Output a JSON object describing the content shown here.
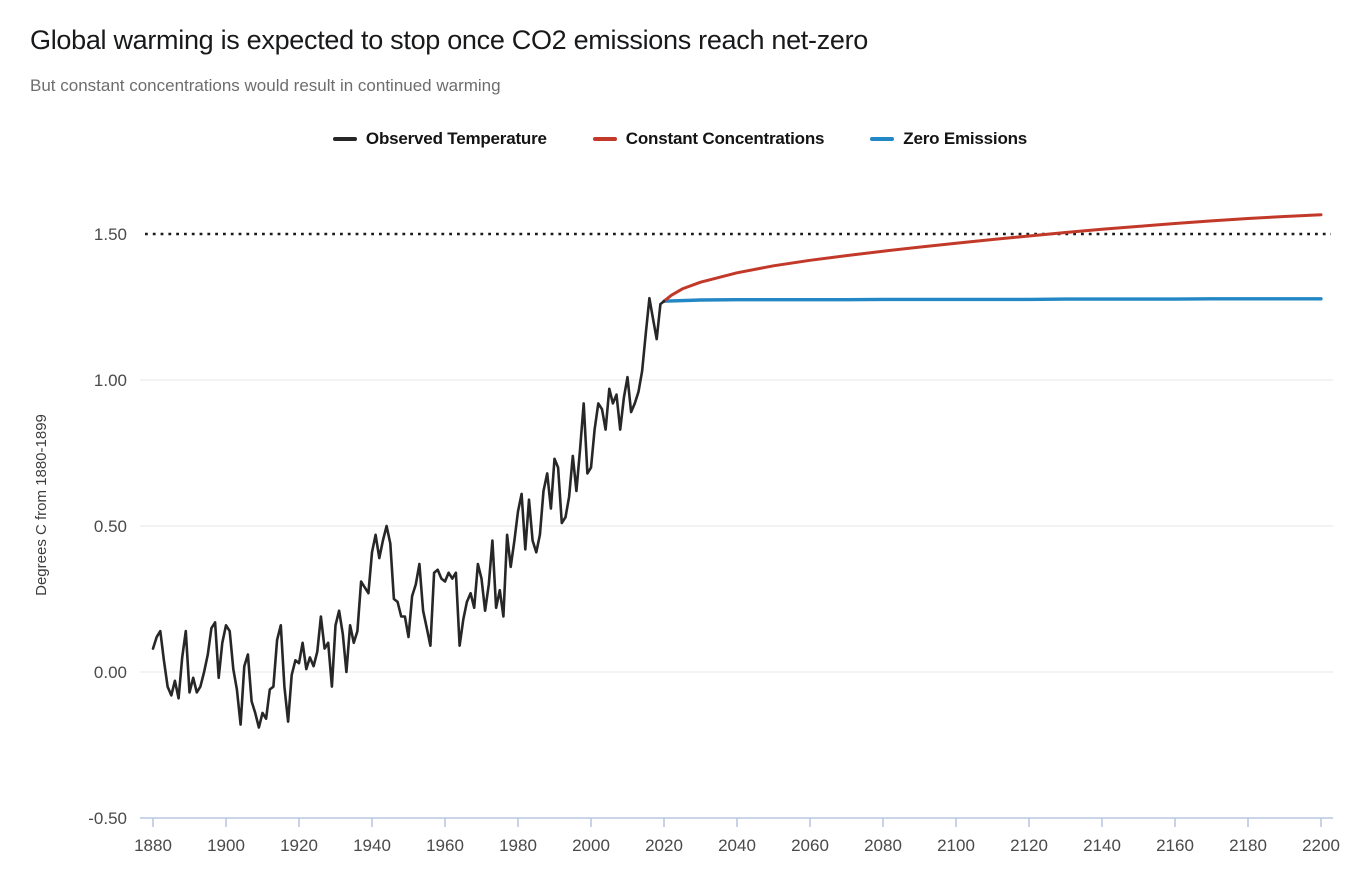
{
  "header": {
    "title": "Global warming is expected to stop once CO2 emissions reach net-zero",
    "subtitle": "But constant concentrations would result in continued warming"
  },
  "legend": [
    {
      "label": "Observed Temperature",
      "color": "#272727"
    },
    {
      "label": "Constant Concentrations",
      "color": "#c2392a"
    },
    {
      "label": "Zero Emissions",
      "color": "#2287c4"
    }
  ],
  "colors": {
    "observed": "#272727",
    "constant_concentrations": "#c2392a",
    "zero_emissions": "#2287c4",
    "gridline": "#e7e7e7",
    "axis_line": "#bac7e2",
    "reference_line": "#1a1a1a",
    "tick_text": "#4a4a4a"
  },
  "chart_data": {
    "type": "line",
    "title": "Global warming is expected to stop once CO2 emissions reach net-zero",
    "subtitle": "But constant concentrations would result in continued warming",
    "xlabel": "",
    "ylabel": "Degrees C from 1880-1899",
    "xlim": [
      1880,
      2200
    ],
    "ylim": [
      -0.5,
      1.75
    ],
    "grid": "horizontal",
    "legend_position": "top-center",
    "x_axis": {
      "ticks": [
        1880,
        1900,
        1920,
        1940,
        1960,
        1980,
        2000,
        2020,
        2040,
        2060,
        2080,
        2100,
        2120,
        2140,
        2160,
        2180,
        2200
      ]
    },
    "y_axis": {
      "title": "Degrees C from 1880-1899",
      "ticks": [
        {
          "value": 1.5,
          "label": "1.50"
        },
        {
          "value": 1.0,
          "label": "1.00"
        },
        {
          "value": 0.5,
          "label": "0.50"
        },
        {
          "value": 0.0,
          "label": "0.00"
        },
        {
          "value": -0.5,
          "label": "-0.50"
        }
      ],
      "gridline_values": [
        0.0,
        0.5,
        1.0
      ],
      "baseline_value": -0.5
    },
    "reference_line": {
      "value": 1.5,
      "style": "dotted",
      "color": "#1a1a1a"
    },
    "series": [
      {
        "name": "Observed Temperature",
        "color": "#272727",
        "stroke_width": 2.6,
        "x_start": 1880,
        "x_step": 1,
        "values": [
          0.08,
          0.12,
          0.14,
          0.04,
          -0.05,
          -0.08,
          -0.03,
          -0.09,
          0.05,
          0.14,
          -0.07,
          -0.02,
          -0.07,
          -0.05,
          0.0,
          0.06,
          0.15,
          0.17,
          -0.02,
          0.1,
          0.16,
          0.14,
          0.01,
          -0.06,
          -0.18,
          0.02,
          0.06,
          -0.1,
          -0.14,
          -0.19,
          -0.14,
          -0.16,
          -0.06,
          -0.05,
          0.11,
          0.16,
          -0.05,
          -0.17,
          -0.01,
          0.04,
          0.03,
          0.1,
          0.01,
          0.05,
          0.02,
          0.07,
          0.19,
          0.08,
          0.1,
          -0.05,
          0.16,
          0.21,
          0.13,
          0.0,
          0.16,
          0.1,
          0.14,
          0.31,
          0.29,
          0.27,
          0.41,
          0.47,
          0.39,
          0.45,
          0.5,
          0.44,
          0.25,
          0.24,
          0.19,
          0.19,
          0.12,
          0.26,
          0.3,
          0.37,
          0.21,
          0.15,
          0.09,
          0.34,
          0.35,
          0.32,
          0.31,
          0.34,
          0.32,
          0.34,
          0.09,
          0.18,
          0.24,
          0.27,
          0.22,
          0.37,
          0.32,
          0.21,
          0.3,
          0.45,
          0.22,
          0.28,
          0.19,
          0.47,
          0.36,
          0.45,
          0.55,
          0.61,
          0.42,
          0.59,
          0.45,
          0.41,
          0.47,
          0.62,
          0.68,
          0.56,
          0.73,
          0.7,
          0.51,
          0.53,
          0.6,
          0.74,
          0.62,
          0.76,
          0.92,
          0.68,
          0.7,
          0.83,
          0.92,
          0.9,
          0.83,
          0.97,
          0.92,
          0.95,
          0.83,
          0.94,
          1.01,
          0.89,
          0.92,
          0.96,
          1.03,
          1.16,
          1.28,
          1.21,
          1.14,
          1.26,
          1.27
        ]
      },
      {
        "name": "Constant Concentrations",
        "color": "#c2392a",
        "stroke_width": 3,
        "x": [
          2020,
          2022,
          2025,
          2030,
          2040,
          2050,
          2060,
          2070,
          2080,
          2090,
          2100,
          2110,
          2120,
          2130,
          2140,
          2150,
          2160,
          2170,
          2180,
          2190,
          2200
        ],
        "values": [
          1.27,
          1.29,
          1.312,
          1.335,
          1.367,
          1.391,
          1.41,
          1.426,
          1.441,
          1.455,
          1.468,
          1.481,
          1.493,
          1.505,
          1.516,
          1.526,
          1.536,
          1.545,
          1.553,
          1.56,
          1.566
        ]
      },
      {
        "name": "Zero Emissions",
        "color": "#2287c4",
        "stroke_width": 3.4,
        "x": [
          2020,
          2030,
          2040,
          2050,
          2060,
          2070,
          2080,
          2090,
          2100,
          2110,
          2120,
          2130,
          2140,
          2150,
          2160,
          2170,
          2180,
          2190,
          2200
        ],
        "values": [
          1.27,
          1.274,
          1.275,
          1.275,
          1.275,
          1.275,
          1.276,
          1.276,
          1.276,
          1.276,
          1.276,
          1.277,
          1.277,
          1.277,
          1.277,
          1.278,
          1.278,
          1.278,
          1.278
        ]
      }
    ]
  }
}
